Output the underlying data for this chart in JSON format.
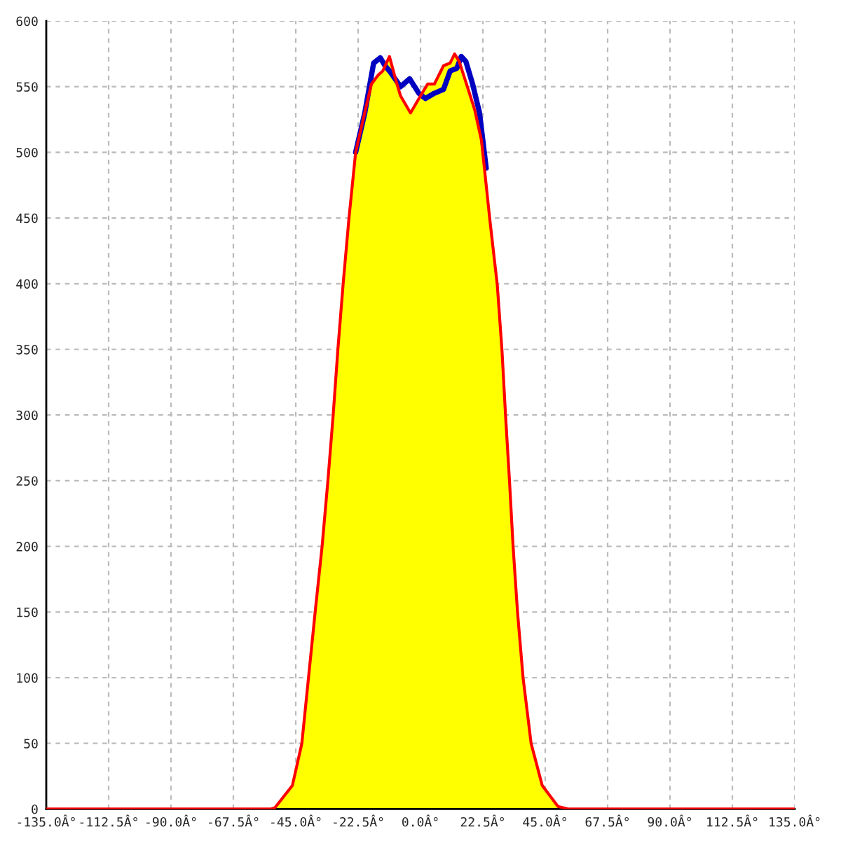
{
  "chart_data": {
    "type": "line",
    "xlim": [
      -135,
      135
    ],
    "xticks": [
      {
        "value": -135,
        "label": "-135.0Â°"
      },
      {
        "value": -112.5,
        "label": "-112.5Â°"
      },
      {
        "value": -90,
        "label": "-90.0Â°"
      },
      {
        "value": -67.5,
        "label": "-67.5Â°"
      },
      {
        "value": -45,
        "label": "-45.0Â°"
      },
      {
        "value": -22.5,
        "label": "-22.5Â°"
      },
      {
        "value": 0,
        "label": "0.0Â°"
      },
      {
        "value": 22.5,
        "label": "22.5Â°"
      },
      {
        "value": 45,
        "label": "45.0Â°"
      },
      {
        "value": 67.5,
        "label": "67.5Â°"
      },
      {
        "value": 90,
        "label": "90.0Â°"
      },
      {
        "value": 112.5,
        "label": "112.5Â°"
      },
      {
        "value": 135,
        "label": "135.0Â°"
      }
    ],
    "ylim": [
      0,
      600
    ],
    "yticks": [
      0,
      50,
      100,
      150,
      200,
      250,
      300,
      350,
      400,
      450,
      500,
      550,
      600
    ],
    "grid": true,
    "line_style": "solid",
    "series": [
      {
        "type": "area",
        "color": "#ffff00",
        "x": [
          -54,
          -52.5,
          -46.2,
          -42.8,
          -40.4,
          -38,
          -35.5,
          -33.4,
          -31.5,
          -29.8,
          -27.9,
          -25.8,
          -23.4,
          -20.9,
          -17.7,
          -15.2,
          -13.6,
          -11.2,
          -8.9,
          -7.2,
          -3.6,
          0,
          2.6,
          5,
          8.3,
          10.7,
          12.3,
          14,
          17.2,
          19.6,
          22,
          25,
          27.7,
          29.4,
          30.7,
          32.1,
          33.4,
          35,
          37,
          39.9,
          43.9,
          49.6,
          53.5
        ],
        "values": [
          0,
          1,
          18,
          50,
          100,
          150,
          200,
          250,
          300,
          350,
          400,
          450,
          500,
          523,
          552,
          559,
          562,
          573,
          555,
          543,
          530,
          543,
          552,
          552,
          566,
          568,
          575,
          569,
          548,
          532,
          509,
          449,
          399,
          349,
          299,
          250,
          200,
          150,
          100,
          50,
          18,
          2,
          0
        ]
      },
      {
        "color": "#0000c0",
        "x": [
          -23.4,
          -20.1,
          -16.9,
          -14.5,
          -12.8,
          -11.2,
          -7.2,
          -3.9,
          -0.6,
          1.8,
          5,
          8.3,
          10.7,
          13.1,
          14.7,
          16.4,
          18.8,
          21.3,
          23.7
        ],
        "values": [
          500,
          530,
          568,
          572,
          566,
          562,
          550,
          556,
          545,
          541,
          545,
          548,
          562,
          564,
          573,
          569,
          552,
          530,
          488
        ]
      },
      {
        "color": "#ff0000",
        "x": [
          -135,
          -54,
          -52.5,
          -46.2,
          -42.8,
          -40.4,
          -38,
          -35.5,
          -33.4,
          -31.5,
          -29.8,
          -27.9,
          -25.8,
          -23.4,
          -20.9,
          -17.7,
          -15.2,
          -13.6,
          -11.2,
          -8.9,
          -7.2,
          -3.6,
          0,
          2.6,
          5,
          8.3,
          10.7,
          12.3,
          14,
          17.2,
          19.6,
          22,
          25,
          27.7,
          29.4,
          30.7,
          32.1,
          33.4,
          35,
          37,
          39.9,
          43.9,
          49.6,
          53.5,
          135
        ],
        "values": [
          0,
          0,
          1,
          18,
          50,
          100,
          150,
          200,
          250,
          300,
          350,
          400,
          450,
          500,
          523,
          552,
          559,
          562,
          573,
          555,
          543,
          530,
          543,
          552,
          552,
          566,
          568,
          575,
          569,
          548,
          532,
          509,
          449,
          399,
          349,
          299,
          250,
          200,
          150,
          100,
          50,
          18,
          2,
          0,
          0
        ]
      }
    ]
  }
}
